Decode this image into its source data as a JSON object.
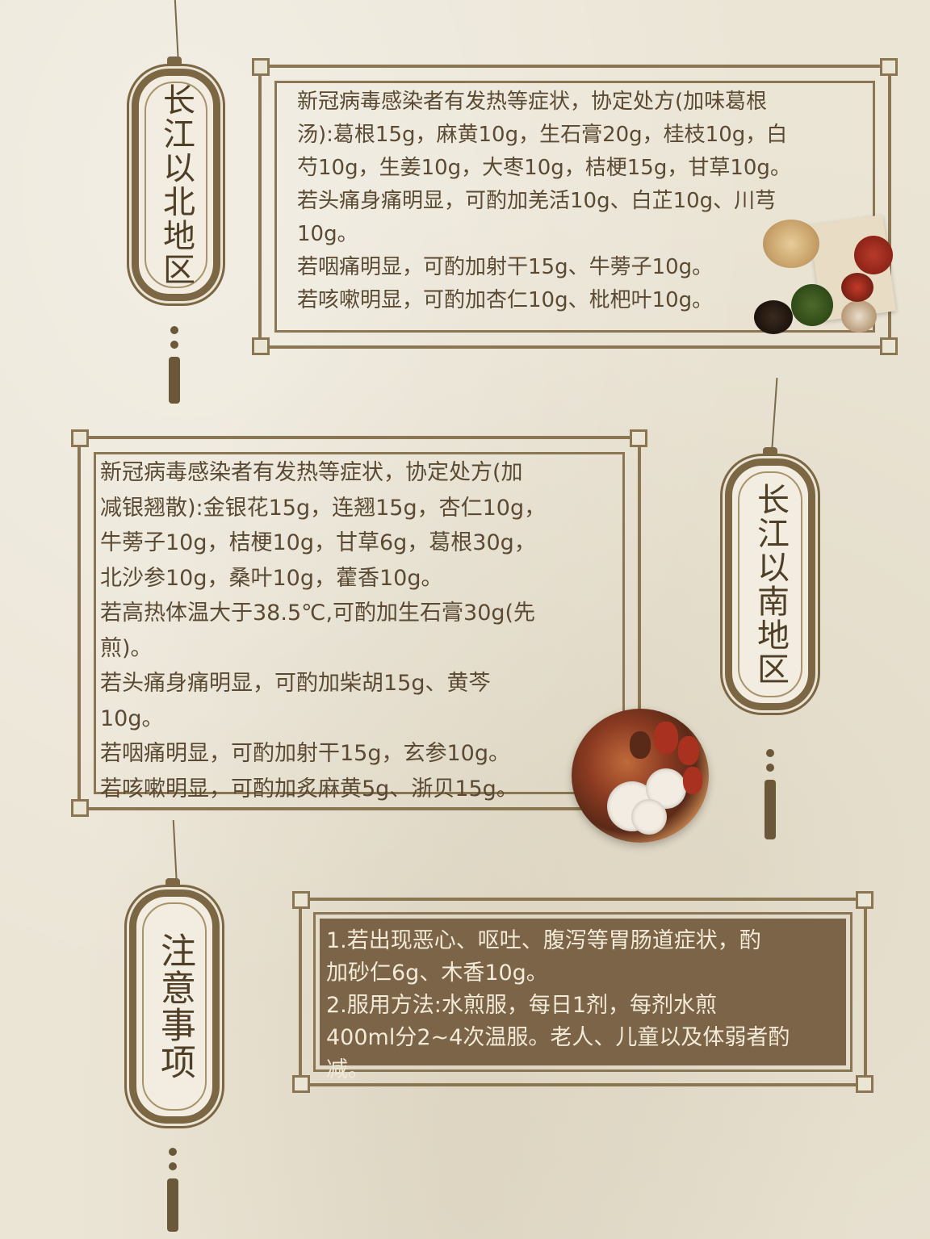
{
  "sections": [
    {
      "label": "长江以北地区",
      "lines": [
        "新冠病毒感染者有发热等症状，协定处方(加味葛根",
        "汤):葛根15g，麻黄10g，生石膏20g，桂枝10g，白",
        "芍10g，生姜10g，大枣10g，桔梗15g，甘草10g。",
        "若头痛身痛明显，可酌加羌活10g、白芷10g、川芎",
        "10g。",
        "若咽痛明显，可酌加射干15g、牛蒡子10g。",
        "若咳嗽明显，可酌加杏仁10g、枇杷叶10g。"
      ]
    },
    {
      "label": "长江以南地区",
      "lines": [
        "新冠病毒感染者有发热等症状，协定处方(加",
        "减银翘散):金银花15g，连翘15g，杏仁10g，",
        "牛蒡子10g，桔梗10g，甘草6g，葛根30g，",
        "北沙参10g，桑叶10g，藿香10g。",
        "若高热体温大于38.5℃,可酌加生石膏30g(先",
        "煎)。",
        "若头痛身痛明显，可酌加柴胡15g、黄芩",
        "10g。",
        "若咽痛明显，可酌加射干15g，玄参10g。",
        "若咳嗽明显，可酌加炙麻黄5g、浙贝15g。"
      ]
    },
    {
      "label": "注意事项",
      "lines": [
        "1.若出现恶心、呕吐、腹泻等胃肠道症状，酌",
        "加砂仁6g、木香10g。",
        "2.服用方法:水煎服，每日1剂，每剂水煎",
        "400ml分2~4次温服。老人、儿童以及体弱者酌",
        "减。"
      ]
    }
  ],
  "colors": {
    "background": "#ebe5d6",
    "frame": "#8a7652",
    "plaque_border": "#7b6744",
    "text": "#5a4a33",
    "notes_box": "#7b6447",
    "notes_text": "#f3ead8"
  }
}
